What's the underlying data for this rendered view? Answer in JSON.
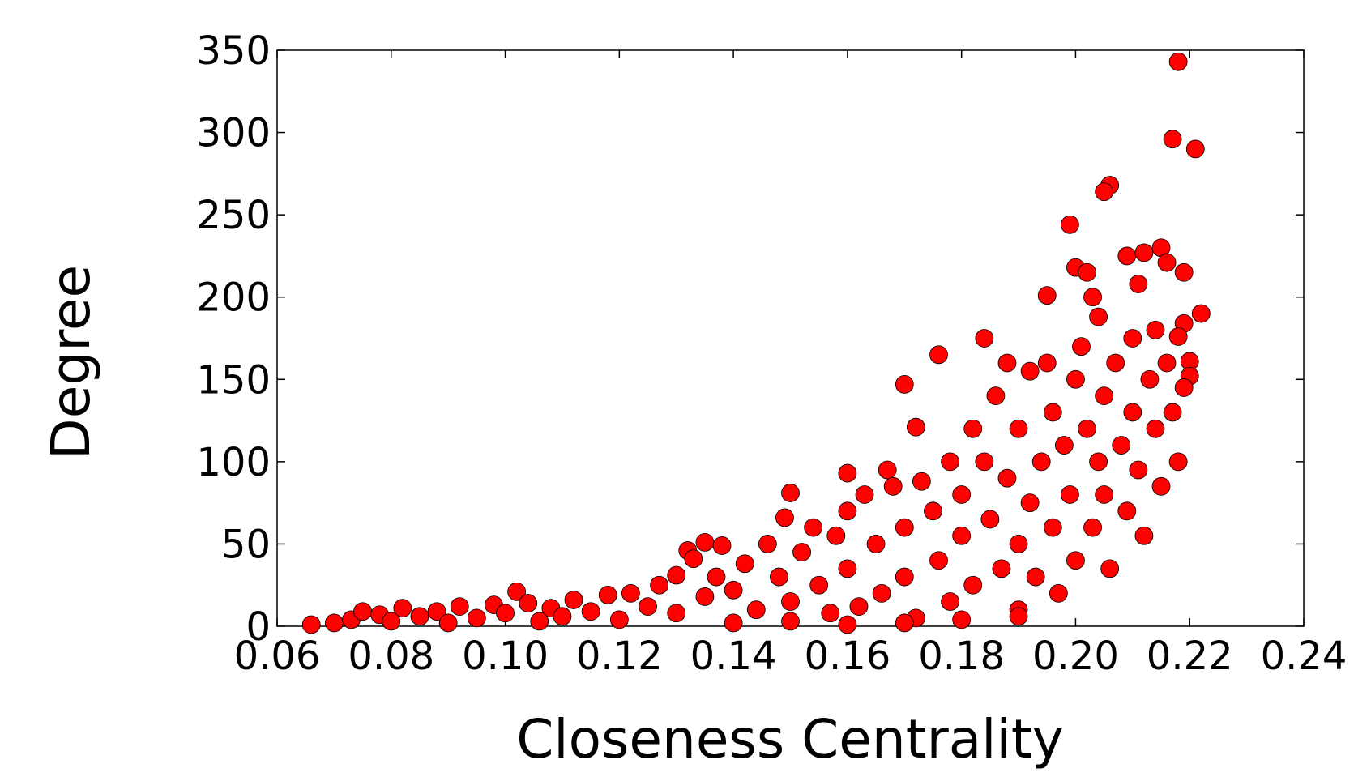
{
  "chart_data": {
    "type": "scatter",
    "x_label": "Closeness Centrality",
    "y_label": "Degree",
    "color": "#ff0000",
    "x": [
      0.218,
      0.217,
      0.221,
      0.206,
      0.205,
      0.199,
      0.2,
      0.202,
      0.215,
      0.209,
      0.212,
      0.216,
      0.219,
      0.211,
      0.222,
      0.219,
      0.195,
      0.184,
      0.176,
      0.17,
      0.172,
      0.15,
      0.149,
      0.135,
      0.138,
      0.132,
      0.102,
      0.16,
      0.167,
      0.22,
      0.22,
      0.203,
      0.204,
      0.214,
      0.218,
      0.066,
      0.07,
      0.073,
      0.075,
      0.078,
      0.08,
      0.082,
      0.085,
      0.088,
      0.09,
      0.092,
      0.095,
      0.098,
      0.1,
      0.104,
      0.106,
      0.108,
      0.11,
      0.112,
      0.115,
      0.118,
      0.12,
      0.122,
      0.125,
      0.127,
      0.13,
      0.13,
      0.133,
      0.135,
      0.137,
      0.14,
      0.142,
      0.144,
      0.146,
      0.148,
      0.15,
      0.152,
      0.154,
      0.155,
      0.157,
      0.158,
      0.16,
      0.16,
      0.162,
      0.163,
      0.165,
      0.166,
      0.168,
      0.17,
      0.17,
      0.172,
      0.173,
      0.175,
      0.176,
      0.178,
      0.178,
      0.18,
      0.18,
      0.182,
      0.182,
      0.184,
      0.185,
      0.186,
      0.187,
      0.188,
      0.188,
      0.19,
      0.19,
      0.19,
      0.192,
      0.192,
      0.193,
      0.194,
      0.195,
      0.196,
      0.196,
      0.197,
      0.198,
      0.199,
      0.2,
      0.2,
      0.201,
      0.202,
      0.203,
      0.204,
      0.205,
      0.205,
      0.206,
      0.207,
      0.208,
      0.209,
      0.21,
      0.21,
      0.211,
      0.212,
      0.213,
      0.214,
      0.215,
      0.216,
      0.217,
      0.218,
      0.219,
      0.14,
      0.15,
      0.16,
      0.17,
      0.18,
      0.19
    ],
    "values": [
      343,
      296,
      290,
      268,
      264,
      244,
      218,
      215,
      230,
      225,
      227,
      221,
      215,
      208,
      190,
      184,
      201,
      175,
      165,
      147,
      121,
      81,
      66,
      51,
      49,
      46,
      21,
      93,
      95,
      161,
      152,
      200,
      188,
      180,
      176,
      1,
      2,
      4,
      9,
      7,
      3,
      11,
      6,
      9,
      2,
      12,
      5,
      13,
      8,
      14,
      3,
      11,
      6,
      16,
      9,
      19,
      4,
      20,
      12,
      25,
      8,
      31,
      41,
      18,
      30,
      22,
      38,
      10,
      50,
      30,
      15,
      45,
      60,
      25,
      8,
      55,
      70,
      35,
      12,
      80,
      50,
      20,
      85,
      60,
      30,
      5,
      88,
      70,
      40,
      15,
      100,
      80,
      55,
      120,
      25,
      100,
      65,
      140,
      35,
      160,
      90,
      120,
      50,
      10,
      155,
      75,
      30,
      100,
      160,
      130,
      60,
      20,
      110,
      80,
      150,
      40,
      170,
      120,
      60,
      100,
      140,
      80,
      35,
      160,
      110,
      70,
      130,
      175,
      95,
      55,
      150,
      120,
      85,
      160,
      130,
      100,
      145,
      2,
      3,
      1,
      2,
      4,
      6
    ],
    "xlim": [
      0.06,
      0.24
    ],
    "xticks": [
      0.06,
      0.08,
      {
        "value": 0.1,
        "label": "0.10"
      },
      0.12,
      0.14,
      0.16,
      0.18,
      {
        "value": 0.2,
        "label": "0.20"
      },
      0.22,
      0.24
    ],
    "ylim": [
      0,
      350
    ],
    "yticks": [
      0,
      50,
      100,
      150,
      200,
      250,
      300,
      350
    ],
    "grid": false
  }
}
